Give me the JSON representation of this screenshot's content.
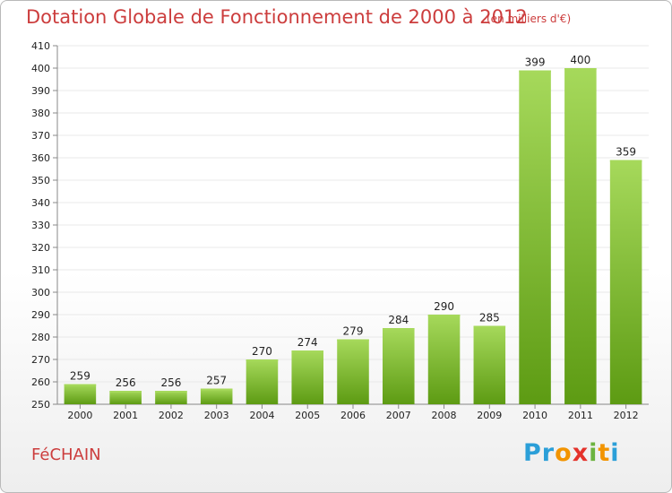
{
  "header": {
    "title": "Dotation Globale de Fonctionnement de 2000 à 2012",
    "unit": "(en milliers d'€)"
  },
  "footer": {
    "commune": "FéCHAIN",
    "brand": [
      "P",
      "r",
      "o",
      "x",
      "i",
      "t",
      "i"
    ],
    "brand_colors": [
      "#2b9fd8",
      "#2b9fd8",
      "#f29400",
      "#e4322b",
      "#6cb33f",
      "#f29400",
      "#2b9fd8"
    ]
  },
  "colors": {
    "title": "#cc3d3d",
    "bar_light": "#a6d95b",
    "bar_dark": "#5d9b13",
    "grid": "#e8e8e8",
    "axis": "#888888",
    "text": "#222222"
  },
  "chart_data": {
    "type": "bar",
    "title": "Dotation Globale de Fonctionnement de 2000 à 2012",
    "subtitle": "(en milliers d'€)",
    "xlabel": "",
    "ylabel": "",
    "categories": [
      "2000",
      "2001",
      "2002",
      "2003",
      "2004",
      "2005",
      "2006",
      "2007",
      "2008",
      "2009",
      "2010",
      "2011",
      "2012"
    ],
    "values": [
      259,
      256,
      256,
      257,
      270,
      274,
      279,
      284,
      290,
      285,
      399,
      400,
      359
    ],
    "ylim": [
      250,
      410
    ],
    "yticks": [
      250,
      260,
      270,
      280,
      290,
      300,
      310,
      320,
      330,
      340,
      350,
      360,
      370,
      380,
      390,
      400,
      410
    ],
    "grid": true,
    "legend": "none"
  }
}
